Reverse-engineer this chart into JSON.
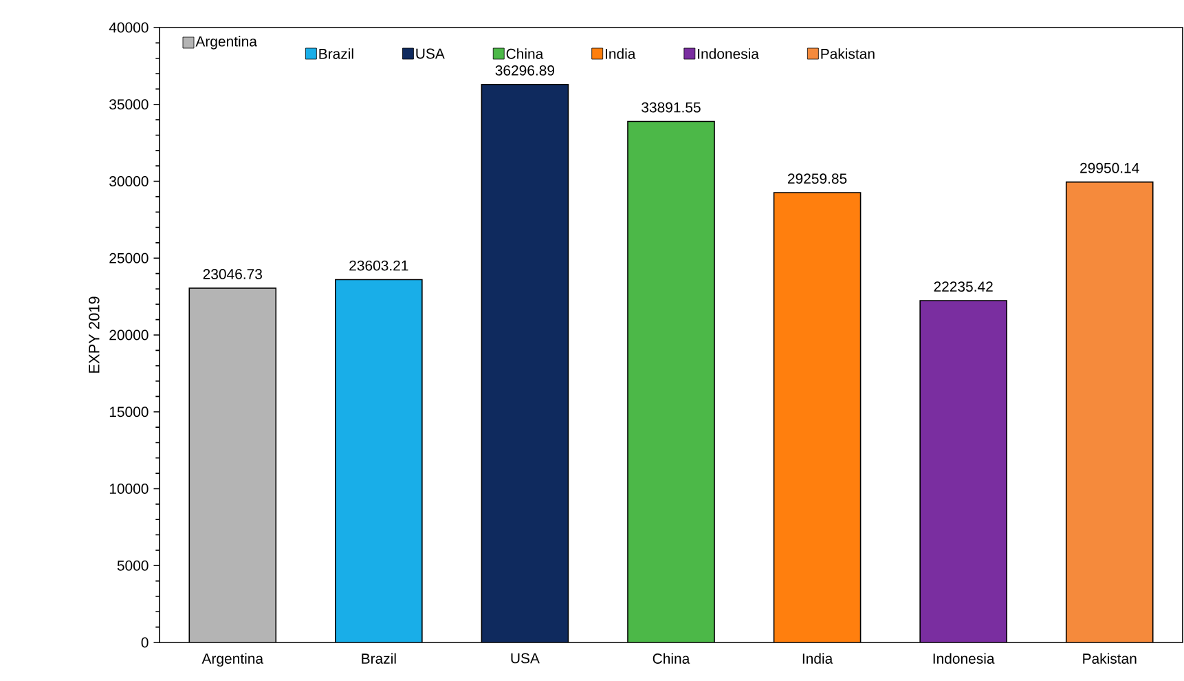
{
  "chart_data": {
    "type": "bar",
    "ylabel": "EXPY 2019",
    "categories": [
      "Argentina",
      "Brazil",
      "USA",
      "China",
      "India",
      "Indonesia",
      "Pakistan"
    ],
    "series": [
      {
        "name": "Argentina",
        "color": "#b4b4b4",
        "values": [
          23046.73,
          null,
          null,
          null,
          null,
          null,
          null
        ]
      },
      {
        "name": "Brazil",
        "color": "#19aee8",
        "values": [
          null,
          23603.21,
          null,
          null,
          null,
          null,
          null
        ]
      },
      {
        "name": "USA",
        "color": "#0f2a5e",
        "values": [
          null,
          null,
          36296.89,
          null,
          null,
          null,
          null
        ]
      },
      {
        "name": "China",
        "color": "#4cb848",
        "values": [
          null,
          null,
          null,
          33891.55,
          null,
          null,
          null
        ]
      },
      {
        "name": "India",
        "color": "#ff7f0e",
        "values": [
          null,
          null,
          null,
          null,
          29259.85,
          null,
          null
        ]
      },
      {
        "name": "Indonesia",
        "color": "#7a2ea0",
        "values": [
          null,
          null,
          null,
          null,
          null,
          22235.42,
          null
        ]
      },
      {
        "name": "Pakistan",
        "color": "#f58a3c",
        "values": [
          null,
          null,
          null,
          null,
          null,
          null,
          29950.14
        ]
      }
    ],
    "ylim": [
      0,
      40000
    ],
    "yticks": [
      0,
      5000,
      10000,
      15000,
      20000,
      25000,
      30000,
      35000,
      40000
    ],
    "data_labels": true,
    "legend": "top",
    "grid": false
  }
}
